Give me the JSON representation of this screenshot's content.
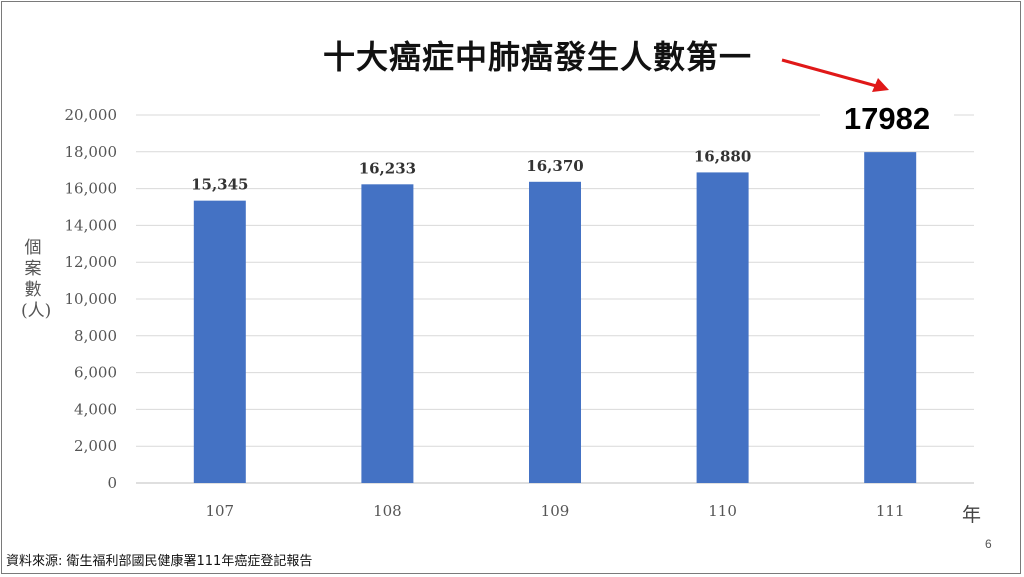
{
  "slide": {
    "title": "十大癌症中肺癌發生人數第一",
    "highlight_value": "17982",
    "source_note": "資料來源: 衛生福利部國民健康署111年癌症登記報告",
    "page_number": "6"
  },
  "colors": {
    "bar": "#4472C4",
    "gridline": "#d9d9d9",
    "arrow": "#e01818"
  },
  "chart_data": {
    "type": "bar",
    "title": "",
    "xlabel": "年",
    "ylabel": "個案數(人)",
    "categories": [
      "107",
      "108",
      "109",
      "110",
      "111"
    ],
    "values": [
      15345,
      16233,
      16370,
      16880,
      17982
    ],
    "data_labels": [
      "15,345",
      "16,233",
      "16,370",
      "16,880",
      ""
    ],
    "ylim": [
      0,
      20000
    ],
    "yticks": [
      0,
      2000,
      4000,
      6000,
      8000,
      10000,
      12000,
      14000,
      16000,
      18000,
      20000
    ],
    "ytick_labels": [
      "0",
      "2,000",
      "4,000",
      "6,000",
      "8,000",
      "10,000",
      "12,000",
      "14,000",
      "16,000",
      "18,000",
      "20,000"
    ],
    "grid": true,
    "legend": "none"
  }
}
